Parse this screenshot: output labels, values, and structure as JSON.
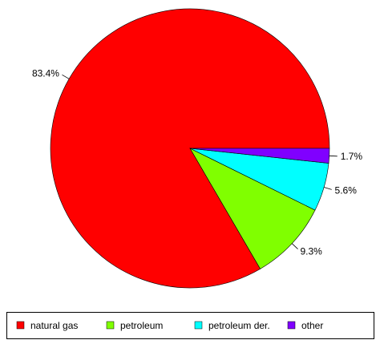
{
  "chart_data": {
    "type": "pie",
    "categories": [
      "natural gas",
      "petroleum",
      "petroleum der.",
      "other"
    ],
    "values": [
      83.4,
      9.3,
      5.6,
      1.7
    ],
    "labels": [
      "83.4%",
      "9.3%",
      "5.6%",
      "1.7%"
    ],
    "colors": [
      "#ff0000",
      "#80ff00",
      "#00ffff",
      "#8000ff"
    ],
    "title": "",
    "legend_position": "bottom",
    "start_angle_deg": 0,
    "direction": "counterclockwise"
  }
}
